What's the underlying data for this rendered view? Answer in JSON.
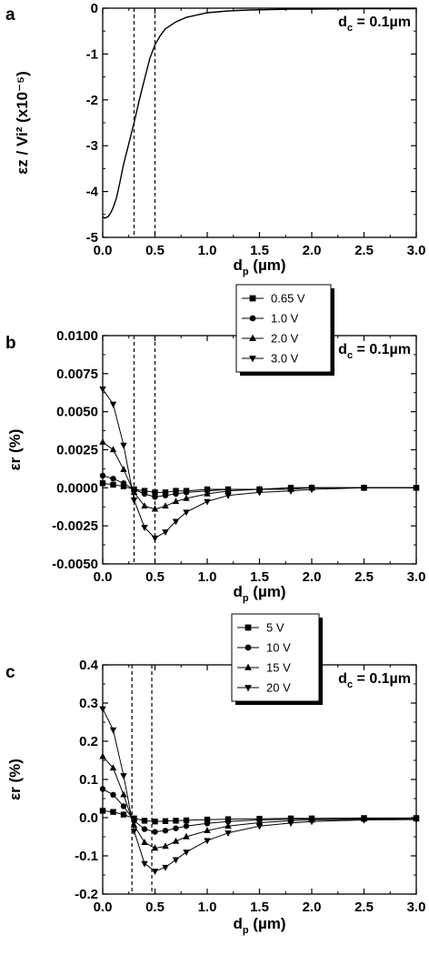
{
  "chart_data": [
    {
      "panel": "a",
      "type": "line",
      "annotation": {
        "main": "d",
        "sub": "c",
        "rest": " = 0.1µm"
      },
      "xlabel": {
        "main": "d",
        "sub": "p",
        "rest": " (µm)"
      },
      "ylabel": "εz / Vi² (x10⁻⁵)",
      "xlim": [
        0,
        3
      ],
      "ylim": [
        -5,
        0
      ],
      "xticks": [
        "0.0",
        "0.5",
        "1.0",
        "1.5",
        "2.0",
        "2.5",
        "3.0"
      ],
      "yticks": [
        "0",
        "-1",
        "-2",
        "-3",
        "-4",
        "-5"
      ],
      "vlines": [
        0.3,
        0.5
      ],
      "series": [
        {
          "marker": "none",
          "x": [
            0.0,
            0.02,
            0.05,
            0.08,
            0.1,
            0.13,
            0.16,
            0.2,
            0.25,
            0.3,
            0.35,
            0.4,
            0.45,
            0.5,
            0.55,
            0.6,
            0.7,
            0.8,
            0.9,
            1.0,
            1.2,
            1.4,
            1.6,
            1.8,
            2.0,
            2.5,
            3.0
          ],
          "y": [
            -4.55,
            -4.58,
            -4.55,
            -4.45,
            -4.35,
            -4.15,
            -3.85,
            -3.4,
            -2.95,
            -2.5,
            -2.0,
            -1.55,
            -1.1,
            -0.8,
            -0.6,
            -0.45,
            -0.3,
            -0.2,
            -0.15,
            -0.1,
            -0.06,
            -0.04,
            -0.03,
            -0.02,
            -0.02,
            -0.01,
            -0.01
          ]
        }
      ]
    },
    {
      "panel": "b",
      "type": "line",
      "annotation": {
        "main": "d",
        "sub": "c",
        "rest": " = 0.1µm"
      },
      "xlabel": {
        "main": "d",
        "sub": "p",
        "rest": " (µm)"
      },
      "ylabel": "εr (%)",
      "xlim": [
        0,
        3
      ],
      "ylim": [
        -0.005,
        0.01
      ],
      "xticks": [
        "0.0",
        "0.5",
        "1.0",
        "1.5",
        "2.0",
        "2.5",
        "3.0"
      ],
      "yticks": [
        "0.0100",
        "0.0075",
        "0.0050",
        "0.0025",
        "0.0000",
        "-0.0025",
        "-0.0050"
      ],
      "vlines": [
        0.3,
        0.5
      ],
      "legend_position": "center-right",
      "series": [
        {
          "name": "0.65 V",
          "marker": "square",
          "x": [
            0.0,
            0.1,
            0.2,
            0.3,
            0.4,
            0.5,
            0.6,
            0.7,
            0.8,
            1.0,
            1.2,
            1.5,
            1.8,
            2.0,
            2.5,
            3.0
          ],
          "y": [
            0.0003,
            0.0002,
            0.0001,
            -0.0001,
            -0.0002,
            -0.0003,
            -0.0003,
            -0.0002,
            -0.0002,
            -0.0001,
            -0.0001,
            -0.0001,
            0.0,
            0.0,
            0.0,
            0.0
          ]
        },
        {
          "name": "1.0 V",
          "marker": "circle",
          "x": [
            0.0,
            0.1,
            0.2,
            0.3,
            0.4,
            0.5,
            0.6,
            0.7,
            0.8,
            1.0,
            1.2,
            1.5,
            1.8,
            2.0,
            2.5,
            3.0
          ],
          "y": [
            0.0008,
            0.0006,
            0.0003,
            -0.0001,
            -0.0004,
            -0.0006,
            -0.0005,
            -0.0004,
            -0.0003,
            -0.0002,
            -0.0001,
            -0.0001,
            0.0,
            0.0,
            0.0,
            0.0
          ]
        },
        {
          "name": "2.0 V",
          "marker": "triangle-up",
          "x": [
            0.0,
            0.1,
            0.2,
            0.3,
            0.4,
            0.5,
            0.6,
            0.7,
            0.8,
            1.0,
            1.2,
            1.5,
            1.8,
            2.0,
            2.5,
            3.0
          ],
          "y": [
            0.003,
            0.0025,
            0.0012,
            -0.0003,
            -0.0012,
            -0.0014,
            -0.0012,
            -0.0009,
            -0.0007,
            -0.0004,
            -0.0002,
            -0.0001,
            -0.0001,
            0.0,
            0.0,
            0.0
          ]
        },
        {
          "name": "3.0 V",
          "marker": "triangle-down",
          "x": [
            0.0,
            0.1,
            0.2,
            0.3,
            0.4,
            0.5,
            0.6,
            0.7,
            0.8,
            1.0,
            1.2,
            1.5,
            1.8,
            2.0,
            2.5,
            3.0
          ],
          "y": [
            0.0065,
            0.0055,
            0.0028,
            -0.0008,
            -0.0026,
            -0.0033,
            -0.0029,
            -0.0022,
            -0.0016,
            -0.0009,
            -0.0005,
            -0.0003,
            -0.0002,
            -0.0001,
            0.0,
            0.0
          ]
        }
      ]
    },
    {
      "panel": "c",
      "type": "line",
      "annotation": {
        "main": "d",
        "sub": "c",
        "rest": " = 0.1µm"
      },
      "xlabel": {
        "main": "d",
        "sub": "p",
        "rest": " (µm)"
      },
      "ylabel": "εr (%)",
      "xlim": [
        0,
        3
      ],
      "ylim": [
        -0.2,
        0.4
      ],
      "xticks": [
        "0.0",
        "0.5",
        "1.0",
        "1.5",
        "2.0",
        "2.5",
        "3.0"
      ],
      "yticks": [
        "0.4",
        "0.3",
        "0.2",
        "0.1",
        "0.0",
        "-0.1",
        "-0.2"
      ],
      "vlines": [
        0.28,
        0.47
      ],
      "legend_position": "center-right",
      "series": [
        {
          "name": "5 V",
          "marker": "square",
          "x": [
            0.0,
            0.1,
            0.2,
            0.3,
            0.4,
            0.5,
            0.6,
            0.7,
            0.8,
            1.0,
            1.2,
            1.5,
            1.8,
            2.0,
            2.5,
            3.0
          ],
          "y": [
            0.018,
            0.015,
            0.008,
            -0.002,
            -0.008,
            -0.01,
            -0.009,
            -0.008,
            -0.007,
            -0.005,
            -0.004,
            -0.003,
            -0.002,
            -0.002,
            -0.001,
            -0.001
          ]
        },
        {
          "name": "10 V",
          "marker": "circle",
          "x": [
            0.0,
            0.1,
            0.2,
            0.3,
            0.4,
            0.5,
            0.6,
            0.7,
            0.8,
            1.0,
            1.2,
            1.5,
            1.8,
            2.0,
            2.5,
            3.0
          ],
          "y": [
            0.075,
            0.06,
            0.03,
            -0.008,
            -0.03,
            -0.037,
            -0.034,
            -0.028,
            -0.022,
            -0.015,
            -0.01,
            -0.006,
            -0.004,
            -0.003,
            -0.002,
            -0.002
          ]
        },
        {
          "name": "15 V",
          "marker": "triangle-up",
          "x": [
            0.0,
            0.1,
            0.2,
            0.3,
            0.4,
            0.5,
            0.6,
            0.7,
            0.8,
            1.0,
            1.2,
            1.5,
            1.8,
            2.0,
            2.5,
            3.0
          ],
          "y": [
            0.16,
            0.13,
            0.06,
            -0.02,
            -0.065,
            -0.08,
            -0.075,
            -0.062,
            -0.05,
            -0.034,
            -0.022,
            -0.013,
            -0.008,
            -0.006,
            -0.004,
            -0.003
          ]
        },
        {
          "name": "20 V",
          "marker": "triangle-down",
          "x": [
            0.0,
            0.1,
            0.2,
            0.3,
            0.4,
            0.5,
            0.6,
            0.7,
            0.8,
            1.0,
            1.2,
            1.5,
            1.8,
            2.0,
            2.5,
            3.0
          ],
          "y": [
            0.285,
            0.23,
            0.11,
            -0.035,
            -0.12,
            -0.14,
            -0.13,
            -0.11,
            -0.09,
            -0.06,
            -0.04,
            -0.022,
            -0.014,
            -0.01,
            -0.006,
            -0.005
          ]
        }
      ]
    }
  ]
}
